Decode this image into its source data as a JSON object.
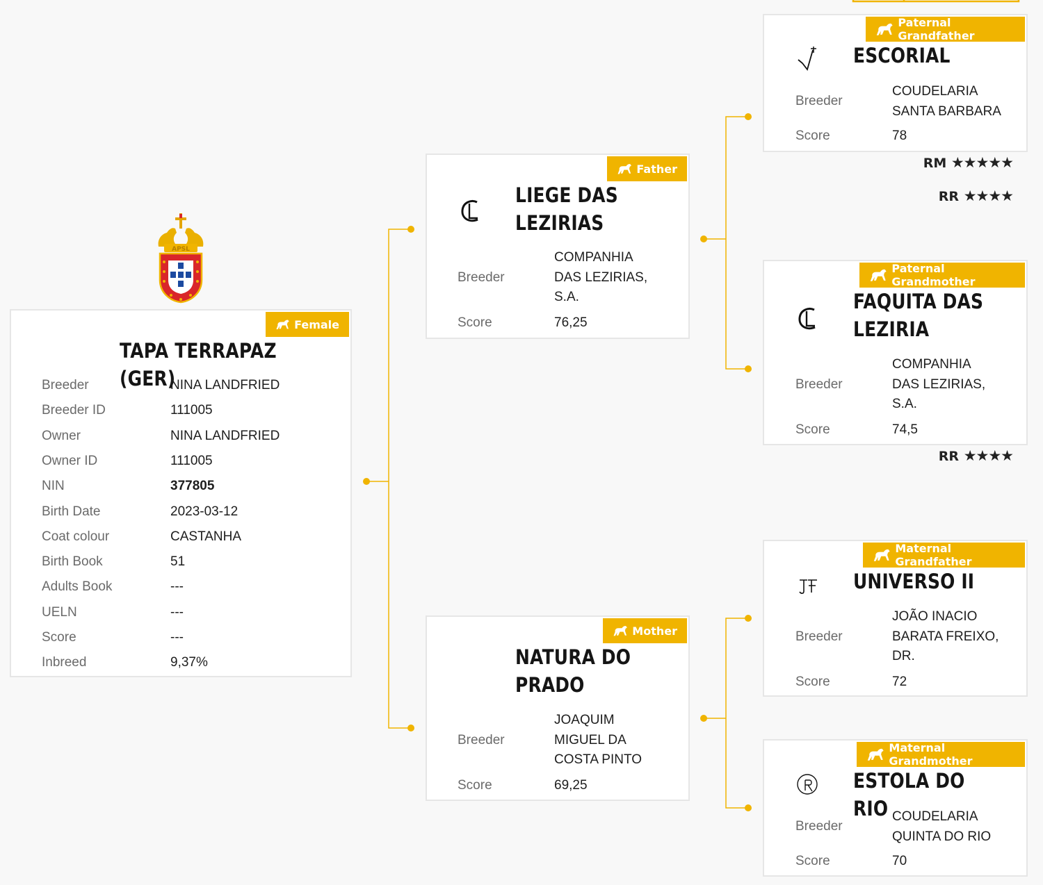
{
  "colors": {
    "accent": "#f0b400",
    "line": "#f0b400",
    "card_border": "#e6e6e6",
    "background": "#f8f8f8"
  },
  "logo": {
    "text": "APSL"
  },
  "labels": {
    "breeder": "Breeder",
    "score": "Score"
  },
  "horse": {
    "badge": "Female",
    "name": "TAPA TERRAPAZ (GER)",
    "fields": [
      {
        "label": "Breeder",
        "value": "NINA LANDFRIED"
      },
      {
        "label": "Breeder ID",
        "value": "111005"
      },
      {
        "label": "Owner",
        "value": "NINA LANDFRIED"
      },
      {
        "label": "Owner ID",
        "value": "111005"
      },
      {
        "label": "NIN",
        "value": "377805"
      },
      {
        "label": "Birth Date",
        "value": "2023-03-12"
      },
      {
        "label": "Coat colour",
        "value": "CASTANHA"
      },
      {
        "label": "Birth Book",
        "value": "51"
      },
      {
        "label": "Adults Book",
        "value": "---"
      },
      {
        "label": "UELN",
        "value": "---"
      },
      {
        "label": "Score",
        "value": "---"
      },
      {
        "label": "Inbreed",
        "value": "9,37%"
      }
    ]
  },
  "father": {
    "badge": "Father",
    "brand_icon": "brand-cl-icon",
    "name_l1": "LIEGE DAS",
    "name_l2": "LEZIRIAS",
    "breeder_l1": "COMPANHIA",
    "breeder_l2": "DAS LEZIRIAS,",
    "breeder_l3": "S.A.",
    "score": "76,25"
  },
  "mother": {
    "badge": "Mother",
    "name_l1": "NATURA DO",
    "name_l2": "PRADO",
    "breeder_l1": "JOAQUIM",
    "breeder_l2": "MIGUEL DA",
    "breeder_l3": "COSTA PINTO",
    "score": "69,25"
  },
  "paternal_grandfather": {
    "badge": "Paternal Grandfather",
    "brand_icon": "brand-check-cross-icon",
    "name": "ESCORIAL",
    "breeder_l1": "COUDELARIA",
    "breeder_l2": "SANTA BARBARA",
    "score": "78",
    "ratings": [
      {
        "code": "RM",
        "stars": 5
      },
      {
        "code": "RR",
        "stars": 4
      }
    ]
  },
  "paternal_grandmother": {
    "badge": "Paternal Grandmother",
    "brand_icon": "brand-cl-icon",
    "name_l1": "FAQUITA DAS",
    "name_l2": "LEZIRIA",
    "breeder_l1": "COMPANHIA",
    "breeder_l2": "DAS LEZIRIAS,",
    "breeder_l3": "S.A.",
    "score": "74,5",
    "ratings": [
      {
        "code": "RR",
        "stars": 4
      }
    ]
  },
  "maternal_grandfather": {
    "badge": "Maternal Grandfather",
    "brand_icon": "brand-jf-icon",
    "name": "UNIVERSO II",
    "breeder_l1": "JOÃO INACIO",
    "breeder_l2": "BARATA FREIXO,",
    "breeder_l3": "DR.",
    "score": "72"
  },
  "maternal_grandmother": {
    "badge": "Maternal Grandmother",
    "brand_icon": "brand-r-circle-icon",
    "name": "ESTOLA DO RIO",
    "breeder_l1": "COUDELARIA",
    "breeder_l2": "QUINTA DO RIO",
    "score": "70"
  }
}
